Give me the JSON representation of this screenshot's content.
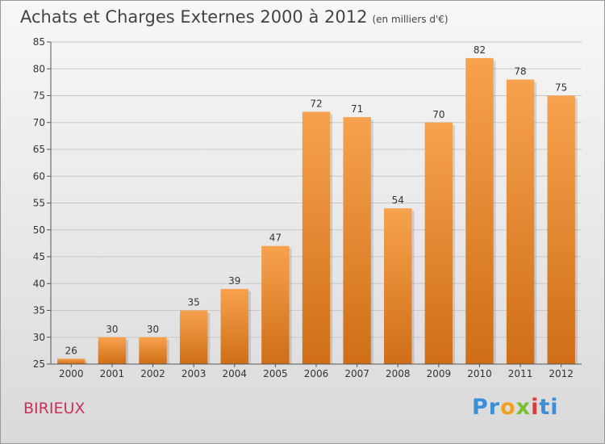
{
  "header": {
    "title": "Achats et Charges Externes 2000 à 2012",
    "unit": "(en milliers d'€)"
  },
  "footer": {
    "place": "BIRIEUX",
    "logo": "Proxiti"
  },
  "colors": {
    "bar_top": "#f7a24e",
    "bar_bottom": "#cf6e16",
    "place_text": "#c8325a"
  },
  "chart_data": {
    "type": "bar",
    "title": "Achats et Charges Externes 2000 à 2012",
    "subtitle": "(en milliers d'€)",
    "xlabel": "",
    "ylabel": "",
    "categories": [
      "2000",
      "2001",
      "2002",
      "2003",
      "2004",
      "2005",
      "2006",
      "2007",
      "2008",
      "2009",
      "2010",
      "2011",
      "2012"
    ],
    "values": [
      26,
      30,
      30,
      35,
      39,
      47,
      72,
      71,
      54,
      70,
      82,
      78,
      75
    ],
    "ylim": [
      25,
      85
    ],
    "yticks": [
      25,
      30,
      35,
      40,
      45,
      50,
      55,
      60,
      65,
      70,
      75,
      80,
      85
    ],
    "grid": true,
    "legend": "none"
  }
}
